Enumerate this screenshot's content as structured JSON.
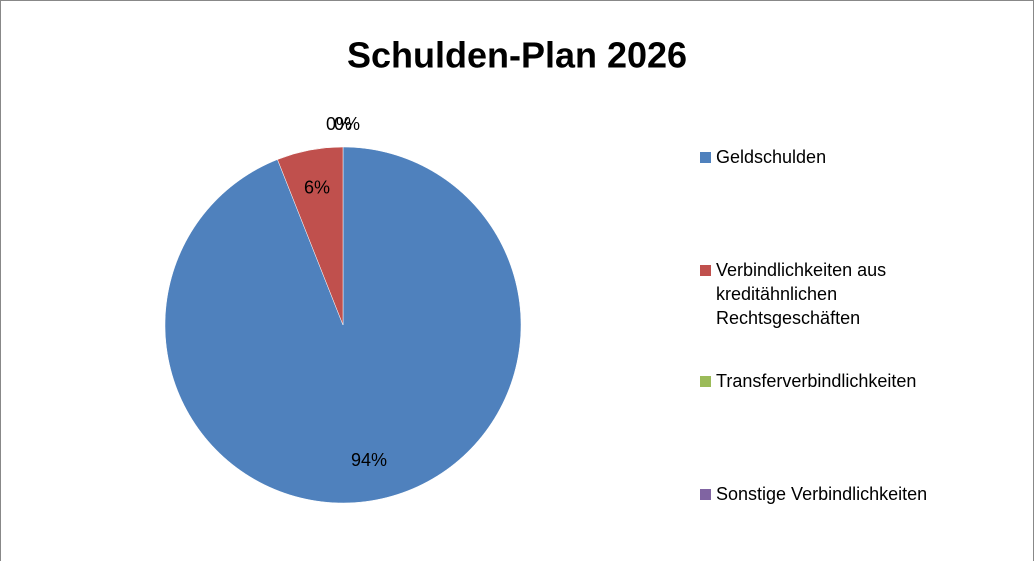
{
  "chart_data": {
    "type": "pie",
    "title": "Schulden-Plan 2026",
    "categories": [
      "Geldschulden",
      "Verbindlichkeiten aus kreditähnlichen Rechtsgeschäften",
      "Transferverbindlichkeiten",
      "Sonstige Verbindlichkeiten"
    ],
    "values": [
      94,
      6,
      0,
      0
    ],
    "value_labels": [
      "94%",
      "6%",
      "0%",
      "0%"
    ],
    "colors": [
      "#4f81bd",
      "#c0504d",
      "#9bbb59",
      "#8064a2"
    ],
    "legend": "right"
  }
}
